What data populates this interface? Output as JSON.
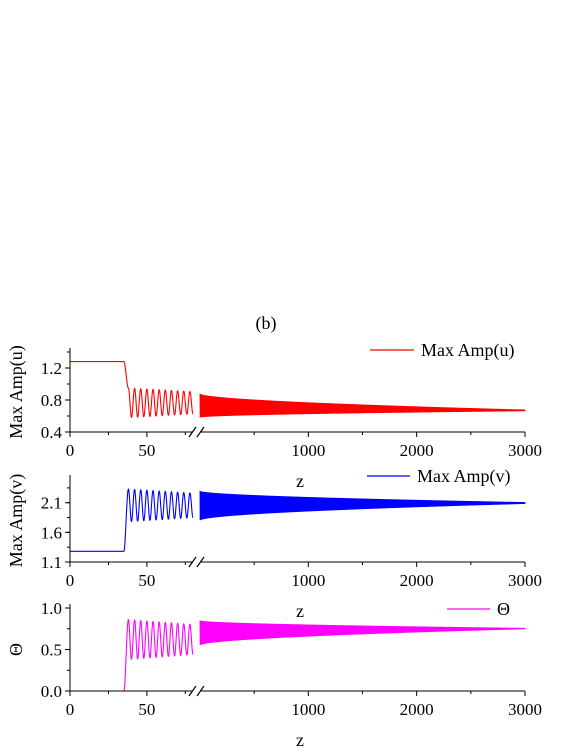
{
  "figure": {
    "panel_label": "(b)",
    "x_axis_break": true
  },
  "chart_data": [
    {
      "type": "line",
      "ylabel": "Max Amp(u)",
      "xlabel": "z",
      "legend": "Max Amp(u)",
      "legend_position": "top-right",
      "color": "#ff0000",
      "ylim": [
        0.4,
        1.4
      ],
      "yticks": [
        "0.4",
        "0.8",
        "1.2"
      ],
      "xticks_left": [
        "0",
        "50"
      ],
      "xticks_right": [
        "1000",
        "2000",
        "3000"
      ],
      "x_left_range": [
        0,
        80
      ],
      "x_right_range": [
        0,
        3000
      ],
      "segments": [
        {
          "x_from": 0,
          "x_to": 35,
          "y": 1.28,
          "kind": "flat"
        },
        {
          "x_from": 38,
          "x_to": 80,
          "kind": "oscillation",
          "min": 0.58,
          "max": 0.95,
          "period": 4
        },
        {
          "x_from": 0,
          "x_to": 3000,
          "kind": "decaying-oscillation",
          "envelope_start": [
            0.58,
            0.88
          ],
          "envelope_end": [
            0.66,
            0.68
          ],
          "final": 0.67
        }
      ]
    },
    {
      "type": "line",
      "ylabel": "Max Amp(v)",
      "xlabel": "z",
      "legend": "Max Amp(v)",
      "legend_position": "top-right",
      "color": "#0000ff",
      "ylim": [
        1.1,
        2.5
      ],
      "yticks": [
        "1.1",
        "1.6",
        "2.1"
      ],
      "xticks_left": [
        "0",
        "50"
      ],
      "xticks_right": [
        "1000",
        "2000",
        "3000"
      ],
      "x_left_range": [
        0,
        80
      ],
      "x_right_range": [
        0,
        3000
      ],
      "segments": [
        {
          "x_from": 0,
          "x_to": 35,
          "y": 1.28,
          "kind": "flat"
        },
        {
          "x_from": 38,
          "x_to": 80,
          "kind": "oscillation",
          "min": 1.78,
          "max": 2.33,
          "period": 4
        },
        {
          "x_from": 0,
          "x_to": 3000,
          "kind": "decaying-oscillation",
          "envelope_start": [
            1.8,
            2.3
          ],
          "envelope_end": [
            2.08,
            2.11
          ],
          "final": 2.09
        }
      ]
    },
    {
      "type": "line",
      "ylabel": "Θ",
      "xlabel": "z",
      "legend": "Θ",
      "legend_position": "top-right",
      "color": "#ff00ff",
      "ylim": [
        0.0,
        1.0
      ],
      "yticks": [
        "0.0",
        "0.5",
        "1.0"
      ],
      "xticks_left": [
        "0",
        "50"
      ],
      "xticks_right": [
        "1000",
        "2000",
        "3000"
      ],
      "x_left_range": [
        0,
        80
      ],
      "x_right_range": [
        0,
        3000
      ],
      "segments": [
        {
          "x_from": 0,
          "x_to": 35,
          "y": 0.0,
          "kind": "flat"
        },
        {
          "x_from": 38,
          "x_to": 80,
          "kind": "oscillation",
          "min": 0.38,
          "max": 0.86,
          "period": 4
        },
        {
          "x_from": 0,
          "x_to": 3000,
          "kind": "decaying-oscillation",
          "envelope_start": [
            0.55,
            0.85
          ],
          "envelope_end": [
            0.745,
            0.76
          ],
          "final": 0.75
        }
      ]
    }
  ]
}
